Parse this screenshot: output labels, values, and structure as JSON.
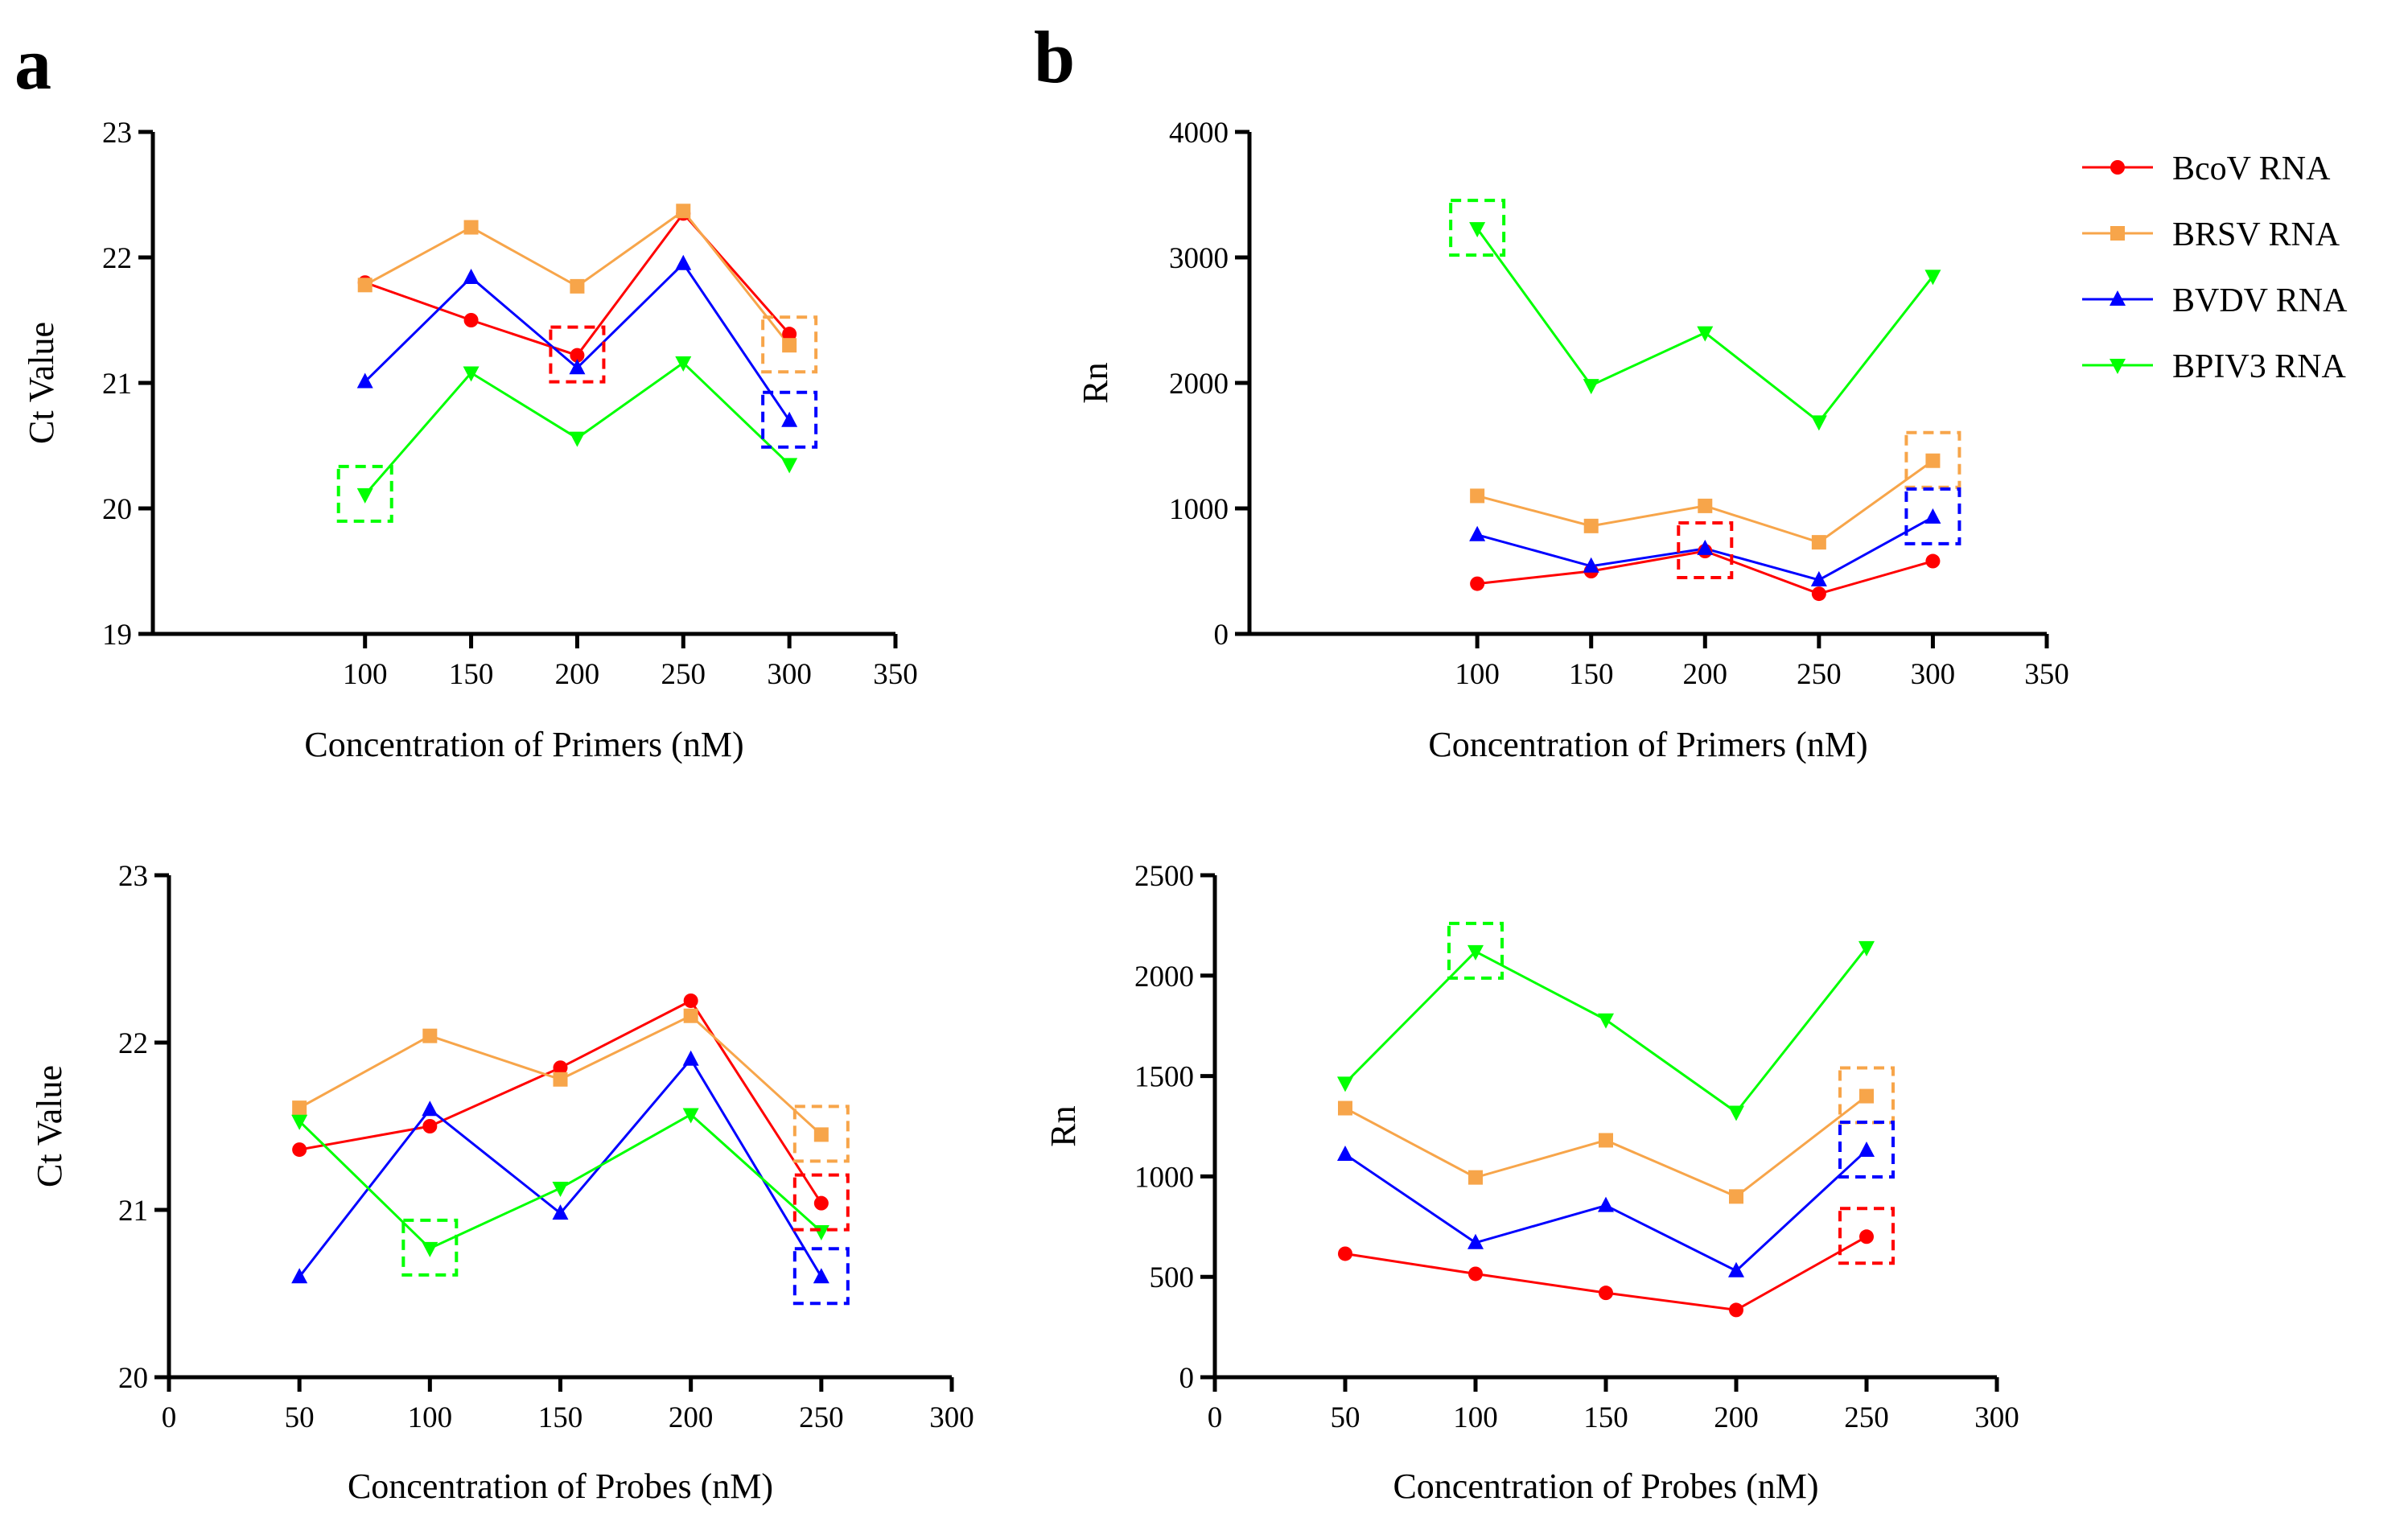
{
  "panel_labels": {
    "a": "a",
    "b": "b"
  },
  "legend": [
    {
      "name": "BcoV RNA",
      "color": "#ff0000",
      "marker": "circle"
    },
    {
      "name": "BRSV RNA",
      "color": "#f7a54a",
      "marker": "square"
    },
    {
      "name": "BVDV RNA",
      "color": "#0000ff",
      "marker": "triangle-up"
    },
    {
      "name": "BPIV3 RNA",
      "color": "#00ff00",
      "marker": "triangle-down"
    }
  ],
  "chart_data": [
    {
      "id": "a-top",
      "type": "line",
      "title": "",
      "xlabel": "Concentration of Primers (nM)",
      "ylabel": "Ct Value",
      "xlim": [
        0,
        350
      ],
      "ylim": [
        19,
        23
      ],
      "xticks": [
        100,
        150,
        200,
        250,
        300,
        350
      ],
      "yticks": [
        19,
        20,
        21,
        22,
        23
      ],
      "x": [
        100,
        150,
        200,
        250,
        300
      ],
      "series": [
        {
          "name": "BcoV RNA",
          "values": [
            21.8,
            21.5,
            21.22,
            22.35,
            21.39
          ]
        },
        {
          "name": "BRSV RNA",
          "values": [
            21.78,
            22.24,
            21.77,
            22.37,
            21.3
          ]
        },
        {
          "name": "BVDV RNA",
          "values": [
            21.01,
            21.84,
            21.12,
            21.95,
            20.7
          ]
        },
        {
          "name": "BPIV3 RNA",
          "values": [
            20.11,
            21.08,
            20.56,
            21.16,
            20.35
          ]
        }
      ],
      "highlights": [
        {
          "series": "BcoV RNA",
          "x": 200
        },
        {
          "series": "BRSV RNA",
          "x": 300
        },
        {
          "series": "BVDV RNA",
          "x": 300
        },
        {
          "series": "BPIV3 RNA",
          "x": 100
        }
      ]
    },
    {
      "id": "b-top",
      "type": "line",
      "title": "",
      "xlabel": "Concentration of Primers (nM)",
      "ylabel": "Rn",
      "xlim": [
        0,
        350
      ],
      "ylim": [
        0,
        4000
      ],
      "xticks": [
        100,
        150,
        200,
        250,
        300,
        350
      ],
      "yticks": [
        0,
        1000,
        2000,
        3000,
        4000
      ],
      "x": [
        100,
        150,
        200,
        250,
        300
      ],
      "series": [
        {
          "name": "BcoV RNA",
          "values": [
            400,
            500,
            660,
            320,
            580
          ]
        },
        {
          "name": "BRSV RNA",
          "values": [
            1100,
            860,
            1020,
            730,
            1380
          ]
        },
        {
          "name": "BVDV RNA",
          "values": [
            790,
            540,
            680,
            430,
            930
          ]
        },
        {
          "name": "BPIV3 RNA",
          "values": [
            3230,
            1980,
            2400,
            1690,
            2850
          ]
        }
      ],
      "highlights": [
        {
          "series": "BcoV RNA",
          "x": 200
        },
        {
          "series": "BRSV RNA",
          "x": 300
        },
        {
          "series": "BVDV RNA",
          "x": 300
        },
        {
          "series": "BPIV3 RNA",
          "x": 100
        }
      ]
    },
    {
      "id": "a-bottom",
      "type": "line",
      "title": "",
      "xlabel": "Concentration of Probes (nM)",
      "ylabel": "Ct Value",
      "xlim": [
        0,
        300
      ],
      "ylim": [
        20,
        23
      ],
      "xticks": [
        0,
        50,
        100,
        150,
        200,
        250,
        300
      ],
      "yticks": [
        20,
        21,
        22,
        23
      ],
      "x": [
        50,
        100,
        150,
        200,
        250
      ],
      "series": [
        {
          "name": "BcoV RNA",
          "values": [
            21.36,
            21.5,
            21.85,
            22.25,
            21.04
          ]
        },
        {
          "name": "BRSV RNA",
          "values": [
            21.61,
            22.04,
            21.78,
            22.16,
            21.45
          ]
        },
        {
          "name": "BVDV RNA",
          "values": [
            20.6,
            21.6,
            20.98,
            21.9,
            20.6
          ]
        },
        {
          "name": "BPIV3 RNA",
          "values": [
            21.53,
            20.77,
            21.13,
            21.57,
            20.87
          ]
        }
      ],
      "highlights": [
        {
          "series": "BcoV RNA",
          "x": 250
        },
        {
          "series": "BRSV RNA",
          "x": 250
        },
        {
          "series": "BVDV RNA",
          "x": 250
        },
        {
          "series": "BPIV3 RNA",
          "x": 100
        }
      ]
    },
    {
      "id": "b-bottom",
      "type": "line",
      "title": "",
      "xlabel": "Concentration of Probes (nM)",
      "ylabel": "Rn",
      "xlim": [
        0,
        300
      ],
      "ylim": [
        0,
        2500
      ],
      "xticks": [
        0,
        50,
        100,
        150,
        200,
        250,
        300
      ],
      "yticks": [
        0,
        500,
        1000,
        1500,
        2000,
        2500
      ],
      "x": [
        50,
        100,
        150,
        200,
        250
      ],
      "series": [
        {
          "name": "BcoV RNA",
          "values": [
            615,
            515,
            420,
            335,
            700
          ]
        },
        {
          "name": "BRSV RNA",
          "values": [
            1340,
            995,
            1180,
            900,
            1400
          ]
        },
        {
          "name": "BVDV RNA",
          "values": [
            1110,
            670,
            855,
            530,
            1130
          ]
        },
        {
          "name": "BPIV3 RNA",
          "values": [
            1465,
            2120,
            1780,
            1320,
            2140
          ]
        }
      ],
      "highlights": [
        {
          "series": "BcoV RNA",
          "x": 250
        },
        {
          "series": "BRSV RNA",
          "x": 250
        },
        {
          "series": "BVDV RNA",
          "x": 250
        },
        {
          "series": "BPIV3 RNA",
          "x": 100
        }
      ]
    }
  ]
}
